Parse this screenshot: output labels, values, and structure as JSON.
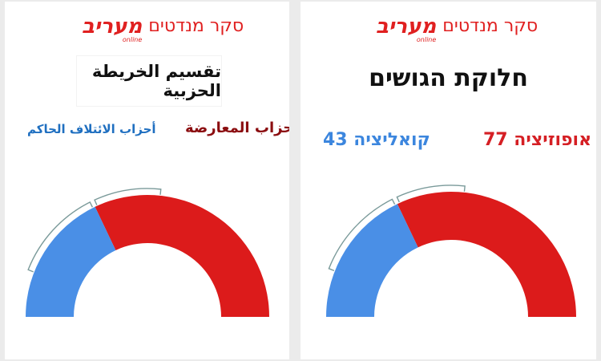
{
  "colors": {
    "opposition": "#dc1b1b",
    "coalition": "#4a8fe6",
    "bracket": "#7a9a9a",
    "brand": "#e02020"
  },
  "left_panel": {
    "brand_logo": "מעריב",
    "brand_sub": "online",
    "survey_label": "סקר מנדטים",
    "title": "تقسيم الخريطة الحزبية",
    "opposition_label": "أحزاب المعارضة",
    "coalition_label": "أحزاب الائتلاف الحاكم"
  },
  "right_panel": {
    "brand_logo": "מעריב",
    "brand_sub": "online",
    "survey_label": "סקר מנדטים",
    "title": "חלוקת הגושים",
    "opposition_label": "אופוזיציה 77",
    "coalition_label": "קואליציה 43"
  },
  "chart_data": [
    {
      "type": "pie",
      "shape": "half-donut",
      "title": "تقسيم الخريطة الحزبية",
      "labels": [
        "أحزاب المعارضة",
        "أحزاب الائتلاف الحاكم"
      ],
      "values": [
        77,
        43
      ]
    },
    {
      "type": "pie",
      "shape": "half-donut",
      "title": "חלוקת הגושים",
      "labels": [
        "אופוזיציה",
        "קואליציה"
      ],
      "values": [
        77,
        43
      ]
    }
  ]
}
